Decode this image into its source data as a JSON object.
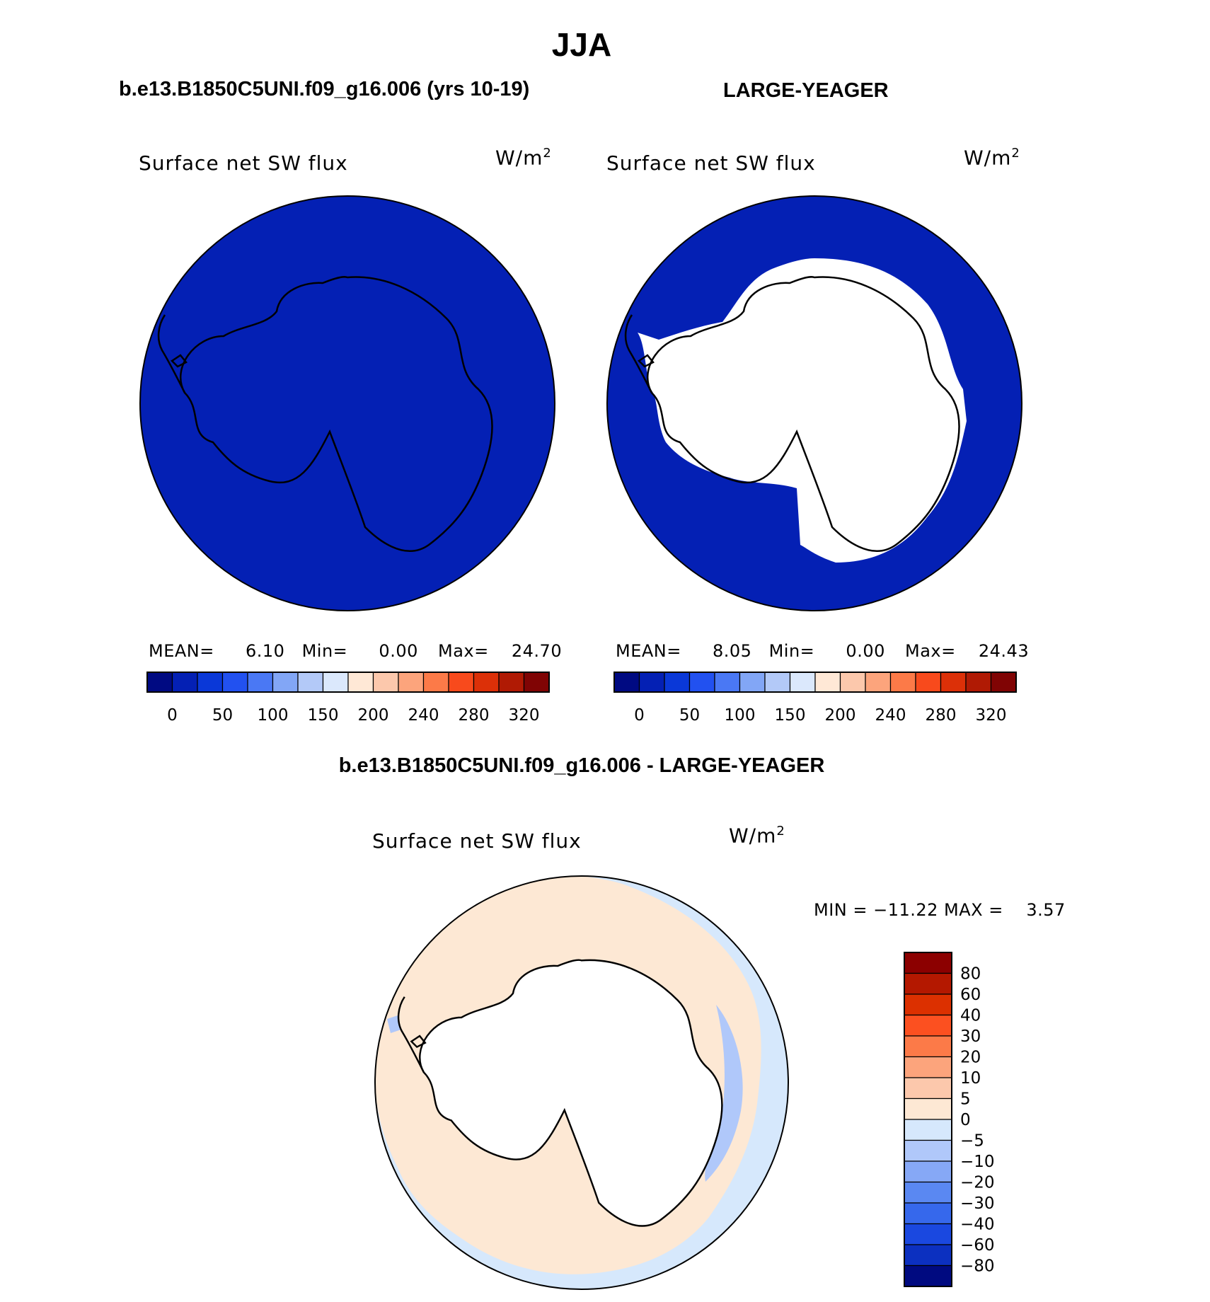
{
  "season_title": "JJA",
  "panels": [
    {
      "case_label": "b.e13.B1850C5UNI.f09_g16.006 (yrs 10-19)",
      "variable": "Surface net SW flux",
      "units_base": "W/m",
      "units_exp": "2",
      "mean_label": "MEAN=",
      "mean": "6.10",
      "min_label": "Min=",
      "min": "0.00",
      "max_label": "Max=",
      "max": "24.70",
      "fill_color": "#0420b4",
      "ice_covered": false
    },
    {
      "case_label": "LARGE-YEAGER",
      "variable": "Surface net SW flux",
      "units_base": "W/m",
      "units_exp": "2",
      "mean_label": "MEAN=",
      "mean": "8.05",
      "min_label": "Min=",
      "min": "0.00",
      "max_label": "Max=",
      "max": "24.43",
      "fill_color": "#0420b4",
      "ice_covered": true
    }
  ],
  "colorbar_main": {
    "colors": [
      "#000a82",
      "#0420b4",
      "#0a38d8",
      "#2251f0",
      "#4a78f4",
      "#82a6f6",
      "#b3c9f8",
      "#dbe8fc",
      "#ffe8d6",
      "#fcc8ac",
      "#fca47c",
      "#fc7a48",
      "#f84a1c",
      "#dc3008",
      "#b01a04",
      "#800404"
    ],
    "labels": [
      "0",
      "50",
      "100",
      "150",
      "200",
      "240",
      "280",
      "320"
    ]
  },
  "diff_panel": {
    "title": "b.e13.B1850C5UNI.f09_g16.006 - LARGE-YEAGER",
    "variable": "Surface net SW flux",
    "units_base": "W/m",
    "units_exp": "2",
    "minmax_text": "MIN = −11.22 MAX =    3.57",
    "colorbar": {
      "colors_top_to_bottom": [
        "#8c0000",
        "#b41800",
        "#dc3000",
        "#fc5020",
        "#fc7a48",
        "#fca47c",
        "#fcc8ac",
        "#fde8d4",
        "#d6e8fc",
        "#b0c8fa",
        "#86a8f6",
        "#5a88f2",
        "#3668ec",
        "#1a48e0",
        "#0c30c0",
        "#000a80"
      ],
      "labels_top_to_bottom": [
        "80",
        "60",
        "40",
        "30",
        "20",
        "10",
        "5",
        "0",
        "−5",
        "−10",
        "−20",
        "−30",
        "−40",
        "−60",
        "−80"
      ]
    },
    "ocean_color": "#d6e8fc",
    "positive_color": "#fde8d4",
    "negative_color": "#b0c8fa"
  }
}
